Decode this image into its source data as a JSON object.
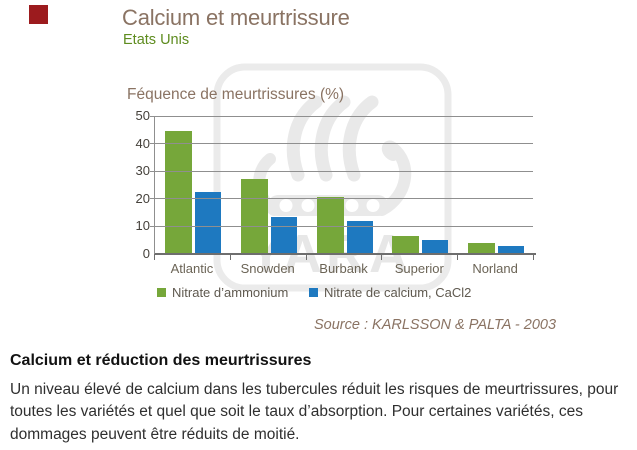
{
  "brand": {
    "square_color": "#9c1b1e"
  },
  "header": {
    "title": "Calcium et meurtrissure",
    "title_color": "#8a7363",
    "subtitle": "Etats Unis",
    "subtitle_color": "#5e8c1f"
  },
  "watermark": {
    "label": "YARA"
  },
  "chart_data": {
    "type": "bar",
    "title": "Féquence de meurtrissures (%)",
    "categories": [
      "Atlantic",
      "Snowden",
      "Burbank",
      "Superior",
      "Norland"
    ],
    "series": [
      {
        "name": "Nitrate d’ammonium",
        "color": "#76a73a",
        "values": [
          44.5,
          27,
          20.5,
          6.5,
          4
        ]
      },
      {
        "name": "Nitrate de calcium, CaCl2",
        "color": "#1e79c0",
        "values": [
          22.5,
          13.5,
          12,
          5,
          3
        ]
      }
    ],
    "xlabel": "",
    "ylabel": "Féquence de meurtrissures (%)",
    "ylim": [
      0,
      50
    ],
    "yticks": [
      0,
      10,
      20,
      30,
      40,
      50
    ],
    "grid": true,
    "legend_position": "bottom",
    "source": "Source : KARLSSON & PALTA - 2003",
    "source_color": "#8a7363"
  },
  "footer": {
    "heading": "Calcium et réduction des meurtrissures",
    "lines": [
      "Un niveau élevé de calcium dans les tubercules réduit les risques de meurtrissures, pour",
      "toutes les variétés et quel que soit le taux d’absorption. Pour certaines variétés, ces",
      "dommages peuvent être réduits de moitié."
    ]
  }
}
